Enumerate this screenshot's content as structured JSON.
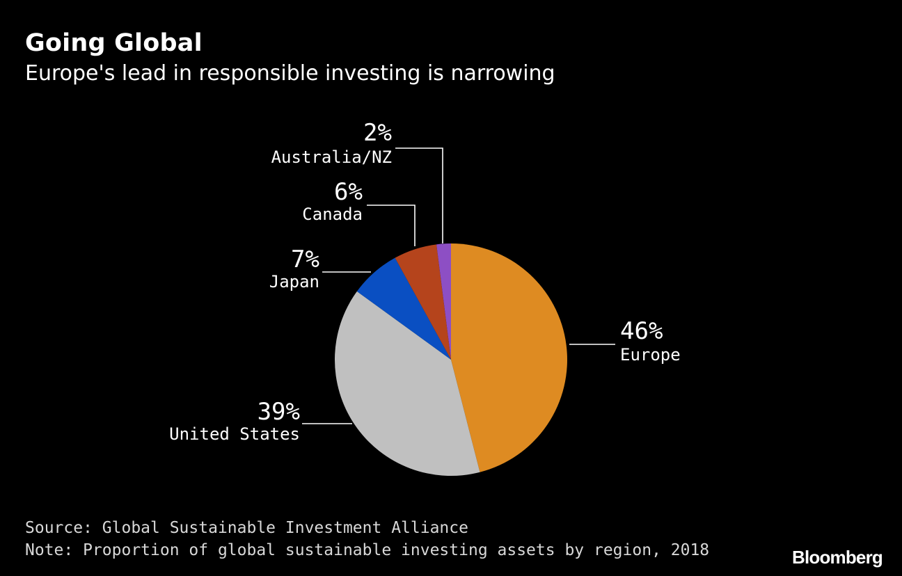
{
  "chart_data": {
    "type": "pie",
    "title": "Going Global",
    "subtitle": "Europe's lead in responsible investing is narrowing",
    "slices": [
      {
        "label": "Europe",
        "value": 46,
        "value_label": "46%",
        "color": "#de8b22"
      },
      {
        "label": "United States",
        "value": 39,
        "value_label": "39%",
        "color": "#c0c0c0"
      },
      {
        "label": "Japan",
        "value": 7,
        "value_label": "7%",
        "color": "#0a4fc2"
      },
      {
        "label": "Canada",
        "value": 6,
        "value_label": "6%",
        "color": "#b5441c"
      },
      {
        "label": "Australia/NZ",
        "value": 2,
        "value_label": "2%",
        "color": "#8d4fc4"
      }
    ],
    "source": "Source: Global Sustainable Investment Alliance",
    "note": "Note: Proportion of global sustainable investing assets by region, 2018"
  },
  "brand": "Bloomberg"
}
